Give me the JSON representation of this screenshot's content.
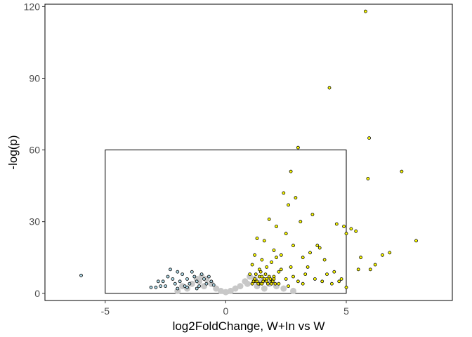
{
  "chart_data": {
    "type": "scatter",
    "title": "",
    "xlabel": "log2FoldChange, W+In vs W",
    "ylabel": "-log(p)",
    "xlim": [
      -7.5,
      9.4
    ],
    "ylim": [
      -3,
      121
    ],
    "x_ticks": [
      -5,
      0,
      5
    ],
    "x_tick_labels": [
      "-5",
      "0",
      "5"
    ],
    "y_ticks": [
      0,
      30,
      60,
      90,
      120
    ],
    "y_tick_labels": [
      "0",
      "30",
      "60",
      "90",
      "120"
    ],
    "grid": false,
    "legend": "none",
    "zoom_box": {
      "x": [
        -5,
        5
      ],
      "y": [
        0,
        60
      ]
    },
    "colors": {
      "not_significant": "#c8c8c8",
      "down_fill": "#add8e6",
      "up_fill": "#ffff00",
      "up_dense_fill": "#f2e200",
      "point_outline": "#000000",
      "frame": "#000000"
    },
    "series": [
      {
        "group": "not_significant",
        "values": [
          [
            -1.6,
            2
          ],
          [
            -1.4,
            4
          ],
          [
            -1.2,
            6
          ],
          [
            -1.0,
            7
          ],
          [
            -0.8,
            6
          ],
          [
            -0.6,
            4
          ],
          [
            -0.4,
            2
          ],
          [
            -0.2,
            1
          ],
          [
            0,
            0.5
          ],
          [
            0.2,
            1
          ],
          [
            0.4,
            2
          ],
          [
            0.6,
            3
          ],
          [
            0.8,
            5
          ],
          [
            1.0,
            7
          ],
          [
            1.2,
            6
          ],
          [
            1.5,
            5
          ],
          [
            1.8,
            4
          ],
          [
            2.1,
            3
          ],
          [
            2.4,
            2
          ],
          [
            2.8,
            1
          ],
          [
            -2.0,
            1
          ],
          [
            -1.8,
            3
          ],
          [
            -1.1,
            5
          ],
          [
            -0.9,
            3
          ],
          [
            0.9,
            4
          ],
          [
            1.3,
            3
          ],
          [
            1.6,
            2
          ]
        ]
      },
      {
        "group": "down",
        "values": [
          [
            -6.0,
            7.5
          ],
          [
            -3.1,
            2.5
          ],
          [
            -2.9,
            2.5
          ],
          [
            -2.7,
            3
          ],
          [
            -2.6,
            5
          ],
          [
            -2.5,
            3
          ],
          [
            -2.4,
            7
          ],
          [
            -2.3,
            10
          ],
          [
            -2.2,
            6
          ],
          [
            -2.1,
            4
          ],
          [
            -2.0,
            9
          ],
          [
            -1.9,
            5
          ],
          [
            -1.8,
            8
          ],
          [
            -1.7,
            3
          ],
          [
            -1.6,
            6
          ],
          [
            -1.5,
            4
          ],
          [
            -1.4,
            9
          ],
          [
            -1.3,
            7
          ],
          [
            -1.2,
            5
          ],
          [
            -1.1,
            3
          ],
          [
            -1.0,
            8
          ],
          [
            -0.9,
            6
          ],
          [
            -0.8,
            4
          ],
          [
            -0.7,
            7
          ],
          [
            -0.6,
            5
          ],
          [
            -2.8,
            5
          ],
          [
            -2.0,
            2
          ],
          [
            -1.6,
            2.5
          ],
          [
            -1.2,
            2
          ],
          [
            -0.5,
            3.5
          ]
        ]
      },
      {
        "group": "up",
        "values": [
          [
            1.0,
            8
          ],
          [
            1.1,
            12
          ],
          [
            1.2,
            16
          ],
          [
            1.3,
            23
          ],
          [
            1.4,
            10
          ],
          [
            1.5,
            14
          ],
          [
            1.6,
            22
          ],
          [
            1.7,
            6
          ],
          [
            1.8,
            31
          ],
          [
            1.9,
            13
          ],
          [
            2.0,
            18
          ],
          [
            2.1,
            28
          ],
          [
            2.2,
            9
          ],
          [
            2.3,
            16
          ],
          [
            2.4,
            42
          ],
          [
            2.5,
            25
          ],
          [
            2.6,
            37
          ],
          [
            2.7,
            51
          ],
          [
            2.8,
            20
          ],
          [
            2.9,
            40
          ],
          [
            3.0,
            61
          ],
          [
            3.1,
            30
          ],
          [
            3.2,
            15
          ],
          [
            3.3,
            8
          ],
          [
            3.4,
            11
          ],
          [
            3.5,
            17
          ],
          [
            3.6,
            33
          ],
          [
            3.7,
            6
          ],
          [
            3.8,
            20
          ],
          [
            3.9,
            19
          ],
          [
            4.0,
            5
          ],
          [
            4.1,
            14
          ],
          [
            4.2,
            8
          ],
          [
            4.3,
            86
          ],
          [
            4.4,
            4
          ],
          [
            4.5,
            9
          ],
          [
            4.6,
            29
          ],
          [
            4.7,
            5
          ],
          [
            4.8,
            6
          ],
          [
            4.9,
            28
          ],
          [
            5.0,
            25
          ],
          [
            5.2,
            27
          ],
          [
            5.4,
            26
          ],
          [
            5.5,
            10
          ],
          [
            5.6,
            15
          ],
          [
            5.8,
            118
          ],
          [
            5.9,
            48
          ],
          [
            5.95,
            65
          ],
          [
            6.0,
            10
          ],
          [
            6.2,
            12
          ],
          [
            6.5,
            16
          ],
          [
            6.8,
            17
          ],
          [
            7.3,
            51
          ],
          [
            7.9,
            22
          ],
          [
            5.0,
            2.5
          ],
          [
            2.0,
            7
          ],
          [
            2.2,
            4
          ],
          [
            2.5,
            6
          ],
          [
            2.7,
            11
          ],
          [
            3.0,
            5
          ],
          [
            1.5,
            7
          ],
          [
            1.2,
            5
          ],
          [
            1.4,
            4
          ],
          [
            2.8,
            7
          ],
          [
            3.2,
            4
          ],
          [
            1.9,
            5
          ],
          [
            2.3,
            10
          ],
          [
            2.6,
            3
          ],
          [
            1.7,
            11
          ],
          [
            2.1,
            15
          ]
        ]
      },
      {
        "group": "up_dense",
        "values": [
          [
            1.1,
            4
          ],
          [
            1.2,
            6
          ],
          [
            1.3,
            5
          ],
          [
            1.4,
            7
          ],
          [
            1.5,
            4
          ],
          [
            1.6,
            6
          ],
          [
            1.7,
            5
          ],
          [
            1.8,
            7
          ],
          [
            1.9,
            4
          ],
          [
            2.0,
            6
          ],
          [
            1.25,
            8
          ],
          [
            1.45,
            9
          ],
          [
            1.65,
            8
          ],
          [
            1.85,
            6
          ],
          [
            1.15,
            5
          ],
          [
            1.35,
            4
          ],
          [
            1.55,
            5
          ],
          [
            1.75,
            4
          ],
          [
            1.95,
            5
          ],
          [
            2.05,
            4
          ]
        ]
      }
    ]
  }
}
